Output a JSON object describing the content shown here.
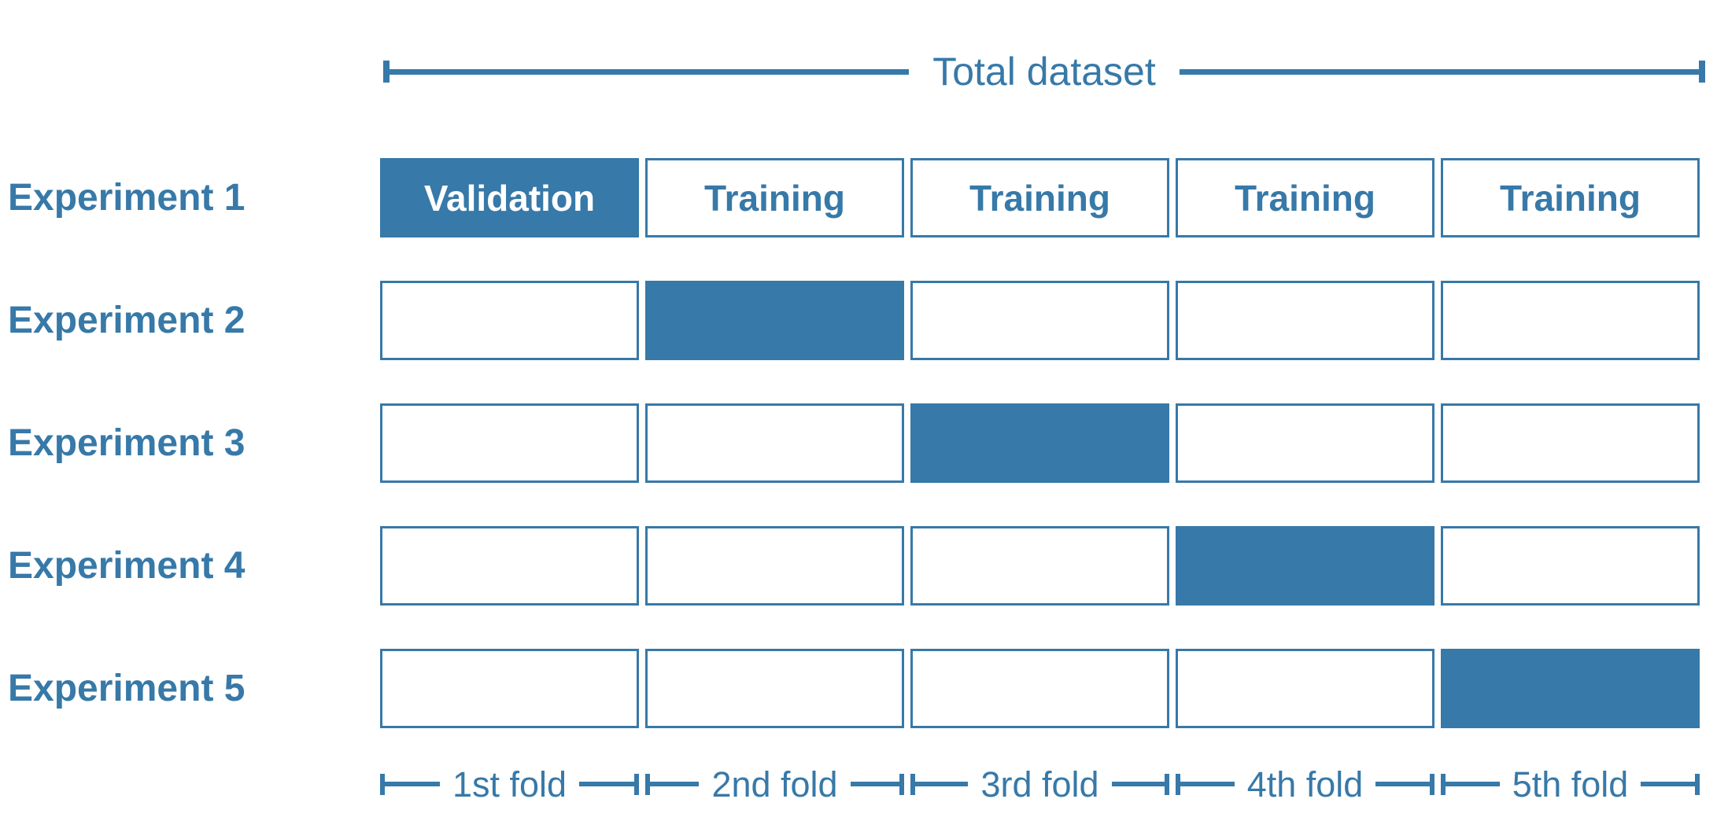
{
  "colors": {
    "accent": "#3779a8",
    "background": "#ffffff",
    "validation_fill": "#3779a8",
    "validation_text": "#ffffff"
  },
  "total_dataset": {
    "label": "Total dataset"
  },
  "experiments": [
    {
      "label": "Experiment 1",
      "validation_fold": 1,
      "cells": [
        {
          "text": "Validation",
          "role": "validation",
          "filled": true
        },
        {
          "text": "Training",
          "role": "training",
          "filled": false
        },
        {
          "text": "Training",
          "role": "training",
          "filled": false
        },
        {
          "text": "Training",
          "role": "training",
          "filled": false
        },
        {
          "text": "Training",
          "role": "training",
          "filled": false
        }
      ]
    },
    {
      "label": "Experiment 2",
      "validation_fold": 2,
      "cells": [
        {
          "text": null,
          "role": "training",
          "filled": false
        },
        {
          "text": null,
          "role": "validation",
          "filled": true
        },
        {
          "text": null,
          "role": "training",
          "filled": false
        },
        {
          "text": null,
          "role": "training",
          "filled": false
        },
        {
          "text": null,
          "role": "training",
          "filled": false
        }
      ]
    },
    {
      "label": "Experiment 3",
      "validation_fold": 3,
      "cells": [
        {
          "text": null,
          "role": "training",
          "filled": false
        },
        {
          "text": null,
          "role": "training",
          "filled": false
        },
        {
          "text": null,
          "role": "validation",
          "filled": true
        },
        {
          "text": null,
          "role": "training",
          "filled": false
        },
        {
          "text": null,
          "role": "training",
          "filled": false
        }
      ]
    },
    {
      "label": "Experiment 4",
      "validation_fold": 4,
      "cells": [
        {
          "text": null,
          "role": "training",
          "filled": false
        },
        {
          "text": null,
          "role": "training",
          "filled": false
        },
        {
          "text": null,
          "role": "training",
          "filled": false
        },
        {
          "text": null,
          "role": "validation",
          "filled": true
        },
        {
          "text": null,
          "role": "training",
          "filled": false
        }
      ]
    },
    {
      "label": "Experiment 5",
      "validation_fold": 5,
      "cells": [
        {
          "text": null,
          "role": "training",
          "filled": false
        },
        {
          "text": null,
          "role": "training",
          "filled": false
        },
        {
          "text": null,
          "role": "training",
          "filled": false
        },
        {
          "text": null,
          "role": "training",
          "filled": false
        },
        {
          "text": null,
          "role": "validation",
          "filled": true
        }
      ]
    }
  ],
  "fold_labels": [
    "1st fold",
    "2nd fold",
    "3rd fold",
    "4th fold",
    "5th fold"
  ]
}
